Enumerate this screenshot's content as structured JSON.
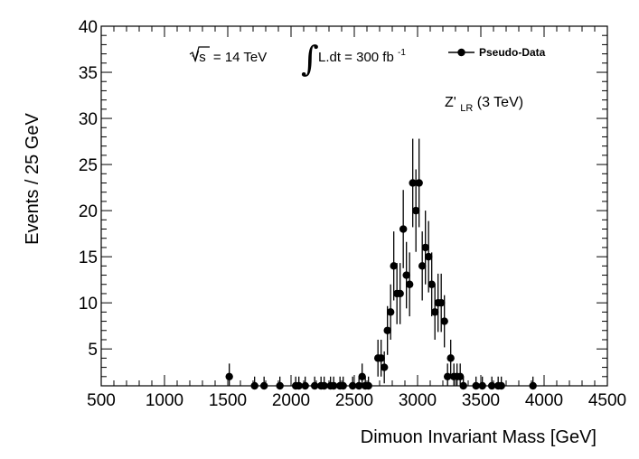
{
  "chart_data": {
    "type": "scatter",
    "title": "",
    "xlabel": "Dimuon Invariant Mass [GeV]",
    "ylabel": "Events / 25 GeV",
    "xlim": [
      500,
      4500
    ],
    "ylim": [
      1,
      40
    ],
    "x_tick_labels": [
      "500",
      "1000",
      "1500",
      "2000",
      "2500",
      "3000",
      "3500",
      "4000",
      "4500"
    ],
    "y_tick_labels": [
      "5",
      "10",
      "15",
      "20",
      "25",
      "30",
      "35",
      "40"
    ],
    "x_ticks": [
      500,
      1000,
      1500,
      2000,
      2500,
      3000,
      3500,
      4000,
      4500
    ],
    "y_ticks": [
      5,
      10,
      15,
      20,
      25,
      30,
      35,
      40
    ],
    "legend": {
      "position": "top-right",
      "entries": [
        "Pseudo-Data"
      ]
    },
    "annotations": {
      "energy_prefix": "√s",
      "energy_value": "= 14 TeV",
      "lumi_integral": "∫",
      "lumi_value": "L.dt = 300 fb",
      "lumi_exp": "-1",
      "model_main": "Z'",
      "model_sub": "LR",
      "model_rest": " (3 TeV)"
    },
    "series": [
      {
        "name": "Pseudo-Data",
        "x": [
          1512,
          1712,
          1787,
          1912,
          2037,
          2062,
          2112,
          2187,
          2237,
          2262,
          2312,
          2337,
          2387,
          2412,
          2487,
          2537,
          2562,
          2587,
          2612,
          2687,
          2712,
          2737,
          2762,
          2787,
          2812,
          2837,
          2862,
          2887,
          2912,
          2937,
          2962,
          2987,
          3012,
          3037,
          3062,
          3087,
          3112,
          3137,
          3162,
          3187,
          3212,
          3237,
          3262,
          3287,
          3312,
          3337,
          3362,
          3462,
          3512,
          3587,
          3637,
          3662,
          3912
        ],
        "y": [
          2,
          1,
          1,
          1,
          1,
          1,
          1,
          1,
          1,
          1,
          1,
          1,
          1,
          1,
          1,
          1,
          2,
          1,
          1,
          4,
          4,
          3,
          7,
          9,
          14,
          11,
          11,
          18,
          13,
          12,
          23,
          20,
          23,
          14,
          16,
          15,
          12,
          9,
          10,
          10,
          8,
          2,
          4,
          2,
          2,
          2,
          1,
          1,
          1,
          1,
          1,
          1,
          1
        ]
      }
    ]
  }
}
